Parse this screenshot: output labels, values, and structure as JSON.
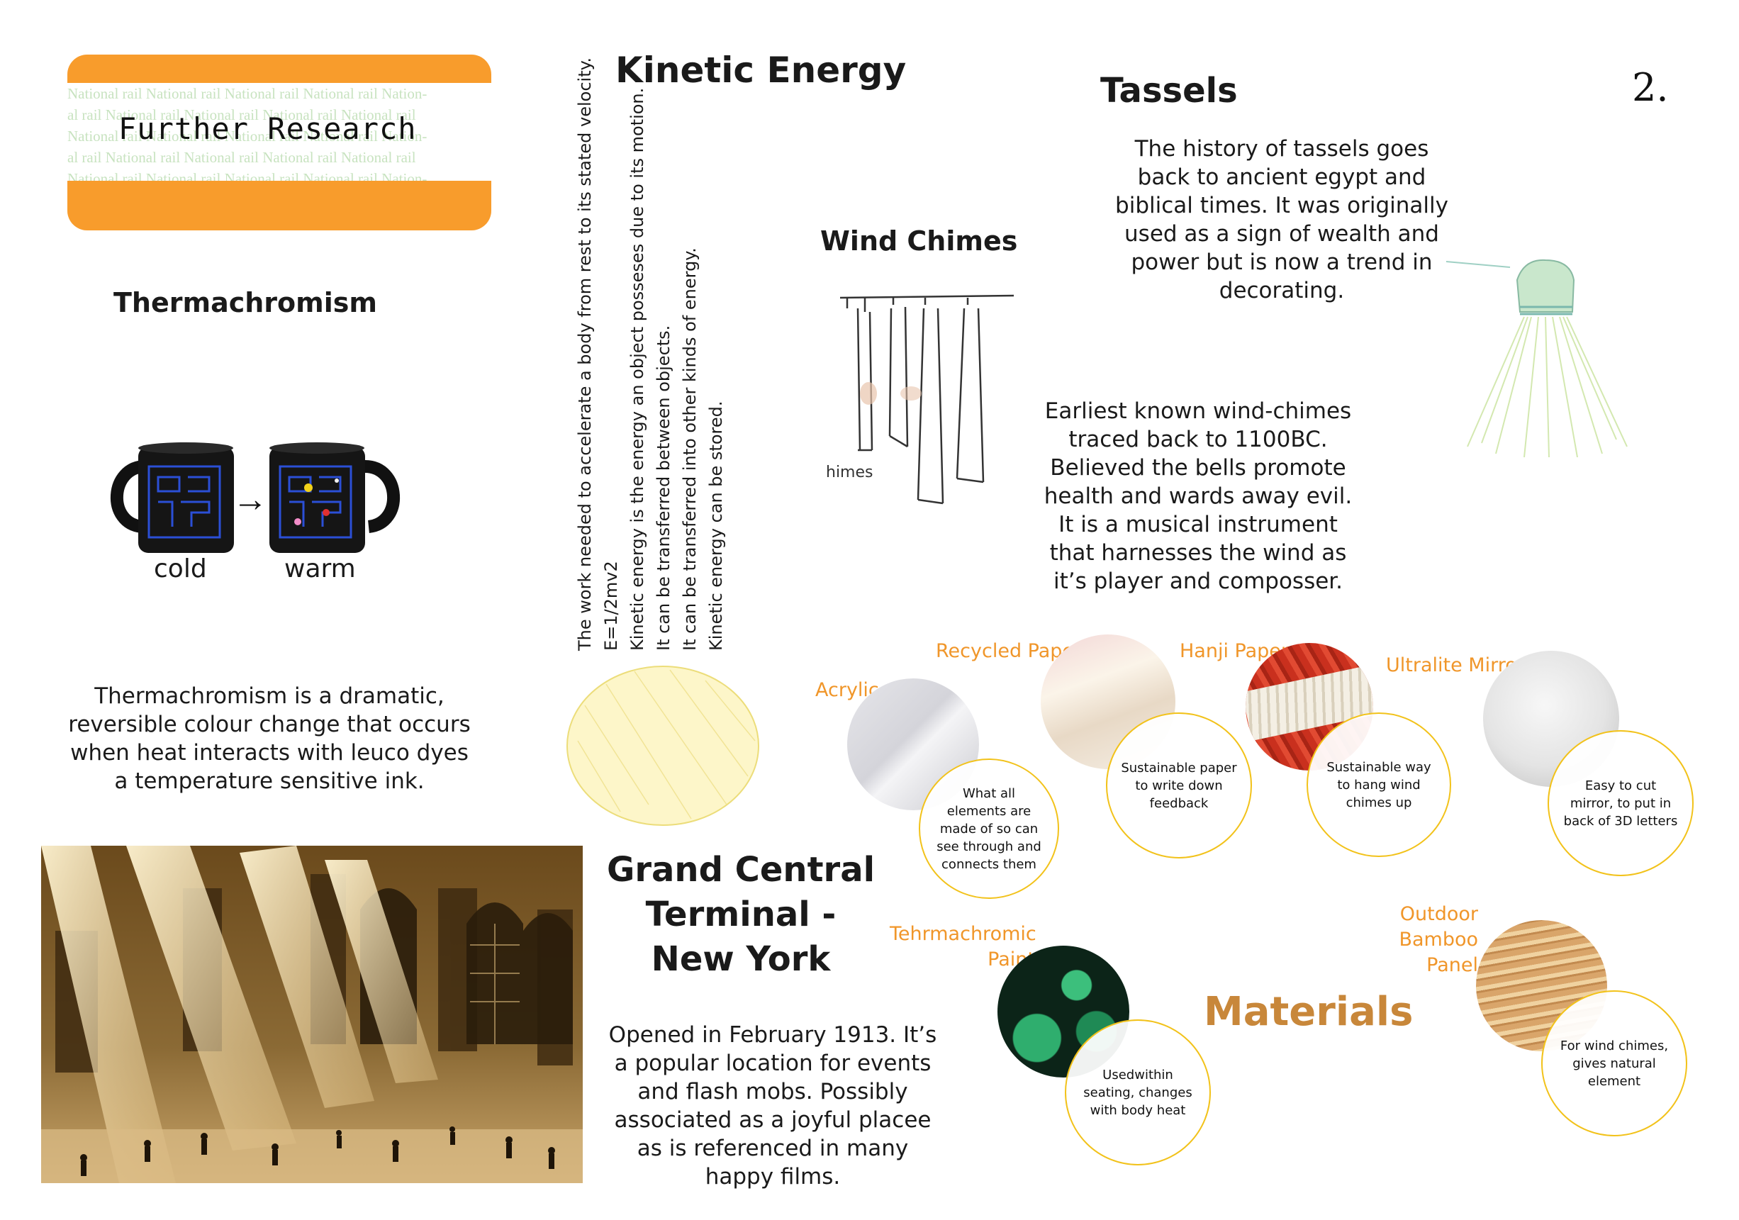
{
  "page_number": "2.",
  "banner": {
    "title": "Further Research",
    "pattern_lines": [
      "National rail National rail National rail National rail Nation-",
      "al rail National rail National rail National rail National rail",
      "National rail National rail National rail National rail Nation-",
      "al rail National rail National rail National rail National rail",
      "National rail National rail National rail National rail Nation-"
    ],
    "accent_color": "#f89c2c"
  },
  "thermachromism": {
    "heading": "Thermachromism",
    "cold_label": "cold",
    "warm_label": "warm",
    "arrow": "→",
    "description": "Thermachromism is a dramatic, reversible colour change that occurs when heat interacts with leuco dyes a temperature sensitive ink."
  },
  "kinetic_energy": {
    "heading": "Kinetic Energy",
    "lines": [
      "The work needed to accelerate a body from rest to its stated velocity.",
      "E=1/2mv2",
      "Kinetic energy is the energy an object posseses due to its motion.",
      "It can be transferred between objects.",
      "It can be transferred into other kinds of energy.",
      "Kinetic energy can be stored."
    ]
  },
  "wind_chimes": {
    "heading": "Wind Chimes",
    "sketch_text": "himes",
    "description": "Earliest known wind-chimes traced back to 1100BC. Believed the bells promote health and wards away evil. It is a musical instrument that harnesses the wind as it’s player and composser."
  },
  "tassels": {
    "heading": "Tassels",
    "description": "The history of tassels goes back to ancient egypt and biblical times. It was originally used as a sign of wealth and power but is now a trend in decorating."
  },
  "grand_central": {
    "heading_lines": [
      "Grand Central",
      "Terminal -",
      "New York"
    ],
    "description": "Opened in February 1913. It’s a popular location for events and flash mobs. Possibly associated as a joyful placee  as is referenced in many happy films."
  },
  "materials": {
    "heading": "Materials",
    "heading_color": "#c8873a",
    "ring_color": "#f2c21a",
    "items": [
      {
        "label": "Acrylic",
        "note": "What all elements are made of so can see through and connects them"
      },
      {
        "label": "Recycled Paper",
        "note": "Sustainable paper to write down feedback"
      },
      {
        "label": "Hanji Paper",
        "note": "Sustainable way to hang wind chimes up"
      },
      {
        "label": "Ultralite Mirror",
        "note": "Easy to cut mirror, to put in back of 3D letters"
      },
      {
        "label_lines": [
          "Tehrmachromic",
          "Paint"
        ],
        "note": "Usedwithin seating, changes with body heat"
      },
      {
        "label_lines": [
          "Outdoor Bamboo",
          "Panel"
        ],
        "note": "For wind chimes, gives natural element"
      }
    ]
  }
}
